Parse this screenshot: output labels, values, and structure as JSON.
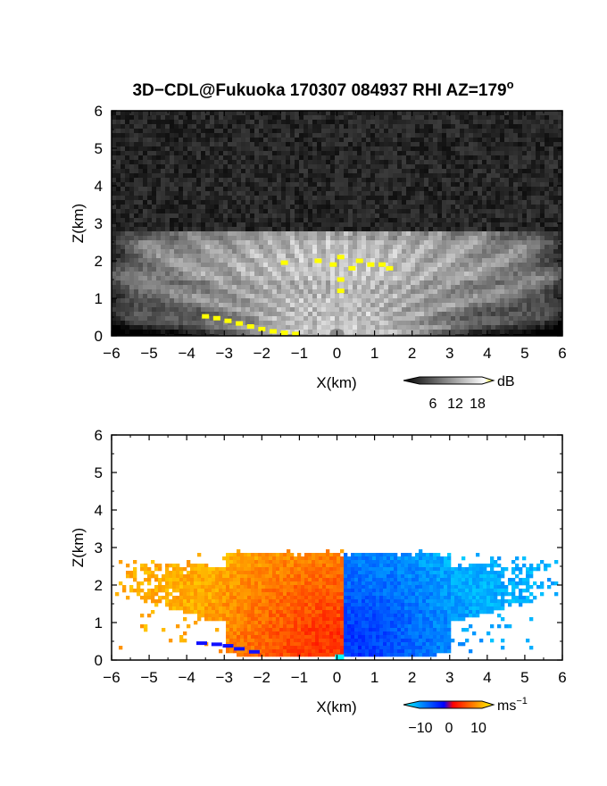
{
  "figure": {
    "title": "3D−CDL@Fukuoka 170307 084937 RHI AZ=179",
    "title_superscript": "o"
  },
  "chart_data": [
    {
      "type": "heatmap",
      "variable": "backscatter intensity",
      "xlabel": "X(km)",
      "ylabel": "Z(km)",
      "xlim": [
        -6,
        6
      ],
      "ylim": [
        0,
        6
      ],
      "x_ticks": [
        -6,
        -5,
        -4,
        -3,
        -2,
        -1,
        0,
        1,
        2,
        3,
        4,
        5,
        6
      ],
      "y_ticks": [
        0,
        1,
        2,
        3,
        4,
        5,
        6
      ],
      "echo_top_km": 2.8,
      "colorbar": {
        "unit": "dB",
        "ticks": [
          6,
          12,
          18
        ],
        "range": [
          0,
          20
        ],
        "colors": [
          "#000000",
          "#ffffff",
          "#ffff00"
        ]
      },
      "saturated_points": [
        {
          "x": -3.5,
          "z": 0.52
        },
        {
          "x": -3.2,
          "z": 0.47
        },
        {
          "x": -2.9,
          "z": 0.4
        },
        {
          "x": -2.6,
          "z": 0.33
        },
        {
          "x": -2.3,
          "z": 0.25
        },
        {
          "x": -2.0,
          "z": 0.18
        },
        {
          "x": -1.7,
          "z": 0.12
        },
        {
          "x": -1.4,
          "z": 0.08
        },
        {
          "x": -1.1,
          "z": 0.05
        },
        {
          "x": -0.5,
          "z": 2.0
        },
        {
          "x": -0.1,
          "z": 1.9
        },
        {
          "x": 0.1,
          "z": 2.1
        },
        {
          "x": 0.1,
          "z": 1.5
        },
        {
          "x": 0.1,
          "z": 1.2
        },
        {
          "x": 0.4,
          "z": 1.8
        },
        {
          "x": 0.6,
          "z": 2.0
        },
        {
          "x": 0.9,
          "z": 1.9
        },
        {
          "x": 1.2,
          "z": 1.9
        },
        {
          "x": 1.4,
          "z": 1.8
        },
        {
          "x": -1.4,
          "z": 1.95
        }
      ]
    },
    {
      "type": "heatmap",
      "variable": "radial velocity",
      "xlabel": "X(km)",
      "ylabel": "Z(km)",
      "xlim": [
        -6,
        6
      ],
      "ylim": [
        0,
        6
      ],
      "x_ticks": [
        -6,
        -5,
        -4,
        -3,
        -2,
        -1,
        0,
        1,
        2,
        3,
        4,
        5,
        6
      ],
      "y_ticks": [
        0,
        1,
        2,
        3,
        4,
        5,
        6
      ],
      "echo_top_km": 2.85,
      "velocity_negative_side_ms": 10,
      "velocity_positive_side_ms": -10,
      "colorbar": {
        "unit": "ms",
        "unit_superscript": "−1",
        "ticks": [
          "−10",
          "0",
          "10"
        ],
        "range": [
          -14,
          14
        ],
        "colors": [
          "#00ffff",
          "#0000ff",
          "#ff0000",
          "#ffff00"
        ]
      }
    }
  ]
}
